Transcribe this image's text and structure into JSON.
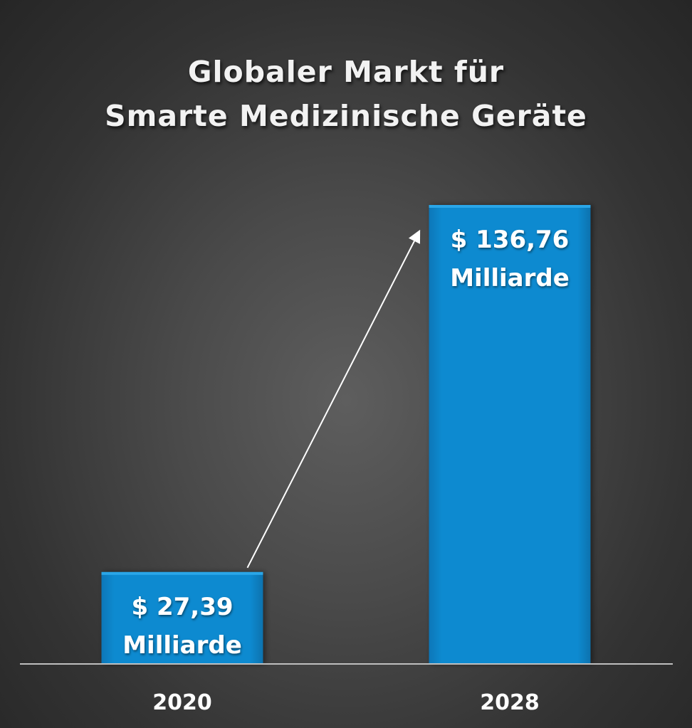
{
  "chart_data": {
    "type": "bar",
    "title": "Globaler Markt für Smarte Medizinische Geräte",
    "title_lines": [
      "Globaler Markt für",
      "Smarte Medizinische Geräte"
    ],
    "categories": [
      "2020",
      "2028"
    ],
    "values": [
      27.39,
      136.76
    ],
    "data_labels": [
      [
        "$ 27,39",
        "Milliarde"
      ],
      [
        "$ 136,76",
        "Milliarde"
      ]
    ],
    "xlabel": "",
    "ylabel": "",
    "grid": false,
    "legend": "none",
    "growth_arrow": true
  },
  "colors": {
    "bar": "#0a87cc",
    "bar_edge": "#2aa6e8",
    "axis": "#bfbfbf",
    "arrow": "#ffffff",
    "text": "#ffffff"
  }
}
